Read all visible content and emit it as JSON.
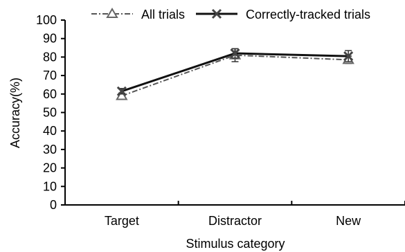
{
  "chart_data": {
    "type": "line",
    "title": "",
    "xlabel": "Stimulus category",
    "ylabel": "Accuracy(%)",
    "categories": [
      "Target",
      "Distractor",
      "New"
    ],
    "ylim": [
      0,
      100
    ],
    "yticks": [
      "0",
      "10",
      "20",
      "30",
      "40",
      "50",
      "60",
      "70",
      "80",
      "90",
      "100"
    ],
    "grid": false,
    "legend_position": "top",
    "series": [
      {
        "name": "All trials",
        "values": [
          59,
          81,
          78.5
        ],
        "errors": [
          1.5,
          3.5,
          2
        ],
        "color": "#555555",
        "line_style": "dash-dot",
        "marker": "triangle"
      },
      {
        "name": "Correctly-tracked trials",
        "values": [
          61.5,
          82,
          80.5
        ],
        "errors": [
          1.5,
          2.5,
          3
        ],
        "color": "#111111",
        "line_style": "solid",
        "marker": "x"
      }
    ]
  }
}
